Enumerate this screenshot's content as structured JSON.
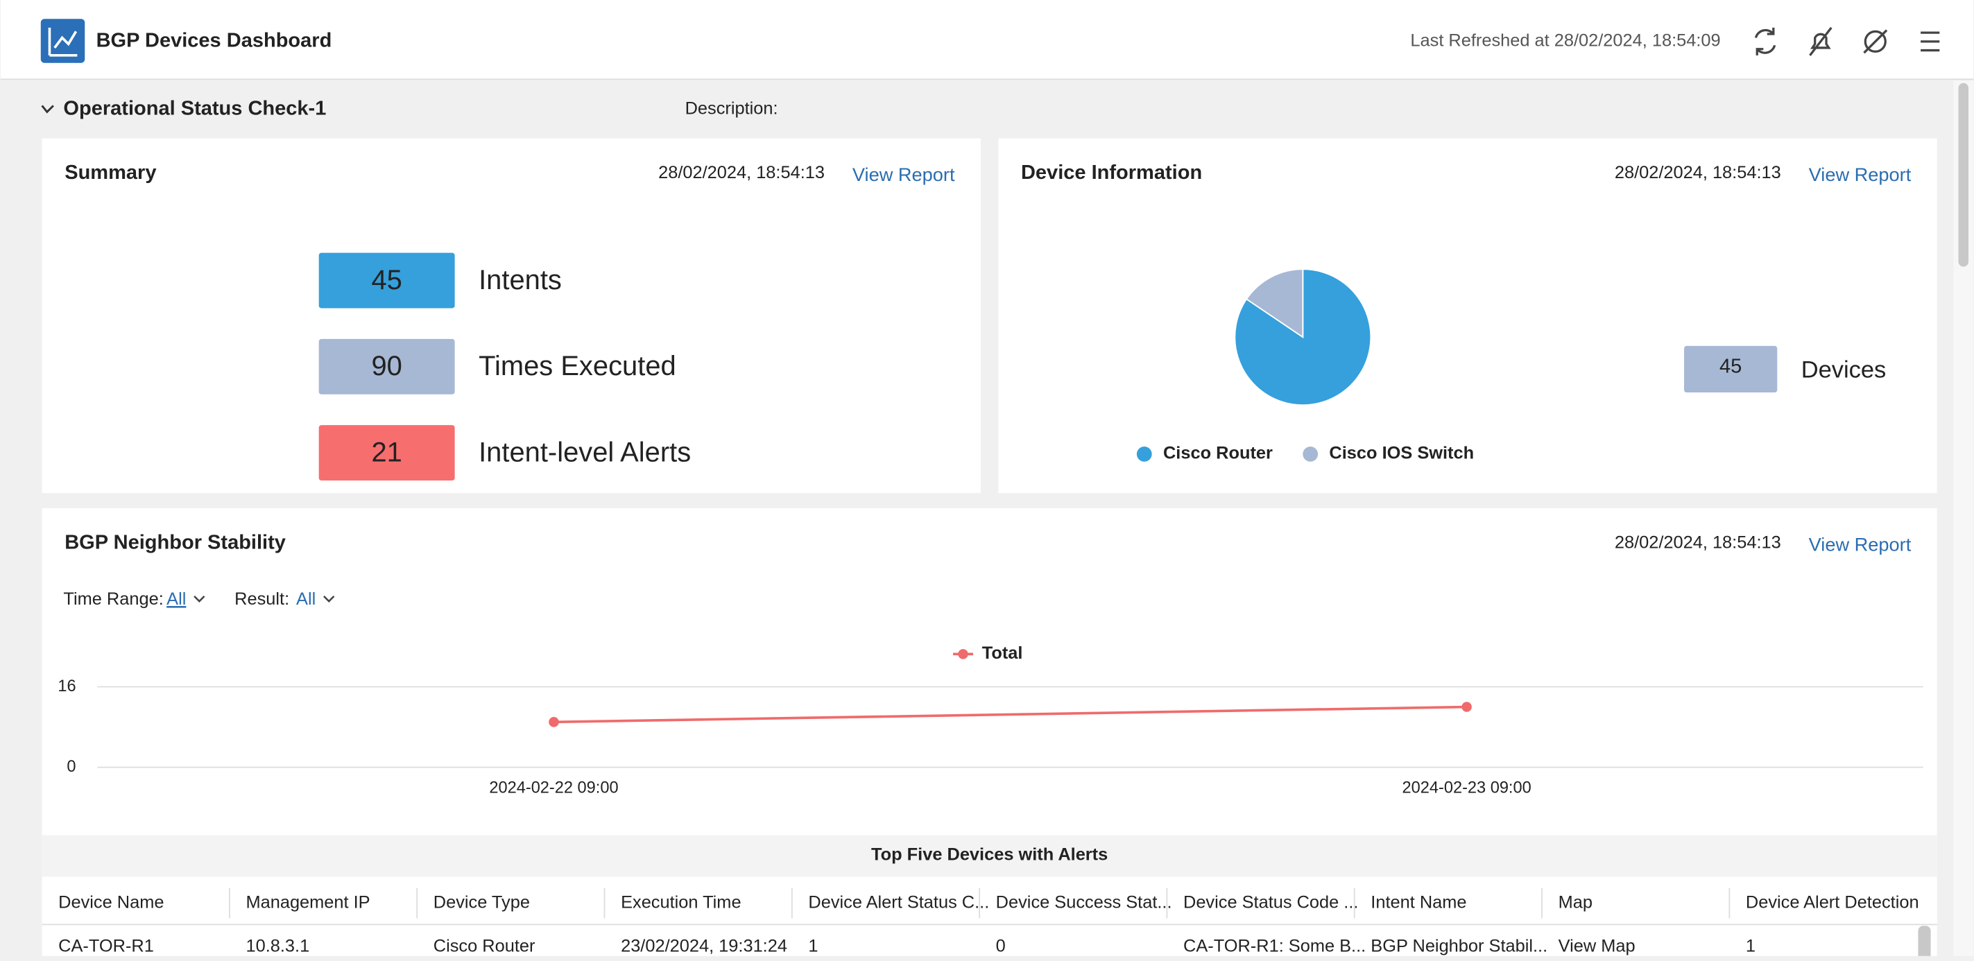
{
  "header": {
    "title": "BGP Devices Dashboard",
    "last_refreshed": "Last Refreshed at 28/02/2024, 18:54:09"
  },
  "section": {
    "title": "Operational Status Check-1",
    "description_label": "Description:"
  },
  "summary": {
    "title": "Summary",
    "timestamp": "28/02/2024, 18:54:13",
    "link": "View Report",
    "items": [
      {
        "value": 45,
        "label": "Intents",
        "color": "#35a0dc"
      },
      {
        "value": 90,
        "label": "Times Executed",
        "color": "#a6b8d3"
      },
      {
        "value": 21,
        "label": "Intent-level Alerts",
        "color": "#f76e6e"
      }
    ]
  },
  "device_information": {
    "title": "Device Information",
    "timestamp": "28/02/2024, 18:54:13",
    "link": "View Report",
    "chart_data": {
      "type": "pie",
      "categories": [
        "Cisco Router",
        "Cisco IOS Switch"
      ],
      "values": [
        38,
        7
      ],
      "colors": [
        "#35a0dc",
        "#a6b8d3"
      ]
    },
    "count": 45,
    "count_label": "Devices"
  },
  "bgp_neighbor_stability": {
    "title": "BGP Neighbor Stability",
    "timestamp": "28/02/2024, 18:54:13",
    "link": "View Report",
    "filters": [
      {
        "label": "Time Range:",
        "value": "All"
      },
      {
        "label": "Result:",
        "value": "All"
      }
    ],
    "chart_data": {
      "type": "line",
      "categories": [
        "2024-02-22 09:00",
        "2024-02-23 09:00"
      ],
      "series": [
        {
          "name": "Total",
          "color": "#ef6b6b",
          "values": [
            9,
            12
          ]
        }
      ],
      "ylim": [
        0,
        16
      ],
      "yticks": [
        0,
        16
      ],
      "grid": true
    },
    "table": {
      "title": "Top Five Devices with Alerts",
      "columns": [
        "Device Name",
        "Management IP",
        "Device Type",
        "Execution Time",
        "Device Alert Status C...",
        "Device Success Stat...",
        "Device Status Code ...",
        "Intent Name",
        "Map",
        "Device Alert Detection"
      ],
      "rows": [
        [
          "CA-TOR-R1",
          "10.8.3.1",
          "Cisco Router",
          "23/02/2024, 19:31:24",
          1,
          0,
          "CA-TOR-R1: Some B...",
          "BGP Neighbor Stabil...",
          "View Map",
          1
        ]
      ]
    }
  }
}
